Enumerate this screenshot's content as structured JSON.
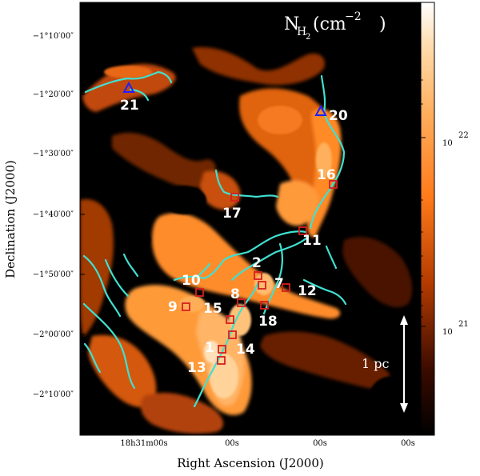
{
  "figure": {
    "map_label_main": "N",
    "map_label_sub": "H",
    "map_label_subsub": "2",
    "map_label_unit": "(cm",
    "map_label_exp": "−2",
    "map_label_close": ")",
    "scale_bar_label": "1 pc",
    "colors": {
      "background": "#000000",
      "filament": "#40e0d0",
      "square_marker": "#d81e1e",
      "triangle_marker": "#2020ff",
      "label": "#ffffff"
    }
  },
  "axes": {
    "xlabel": "Right Ascension (J2000)",
    "ylabel": "Declination (J2000)",
    "yticks": [
      "−1°10′00″",
      "−1°20′00″",
      "−1°30′00″",
      "−1°40′00″",
      "−1°50′00″",
      "−2°00′00″",
      "−2°10′00″"
    ],
    "xticks": [
      "18h31m00s",
      "00s",
      "00s",
      "00s"
    ]
  },
  "colorbar": {
    "ticks": [
      {
        "base": "10",
        "exp": "22"
      },
      {
        "base": "10",
        "exp": "21"
      }
    ]
  },
  "sources": [
    {
      "id": "1",
      "marker": "square"
    },
    {
      "id": "2",
      "marker": "square"
    },
    {
      "id": "7",
      "marker": "square"
    },
    {
      "id": "8",
      "marker": "square"
    },
    {
      "id": "9",
      "marker": "square"
    },
    {
      "id": "10",
      "marker": "square"
    },
    {
      "id": "11",
      "marker": "square"
    },
    {
      "id": "12",
      "marker": "square"
    },
    {
      "id": "13",
      "marker": "square"
    },
    {
      "id": "14",
      "marker": "square"
    },
    {
      "id": "15",
      "marker": "square"
    },
    {
      "id": "16",
      "marker": "square"
    },
    {
      "id": "17",
      "marker": "square"
    },
    {
      "id": "18",
      "marker": "square"
    },
    {
      "id": "20",
      "marker": "triangle"
    },
    {
      "id": "21",
      "marker": "triangle"
    }
  ]
}
